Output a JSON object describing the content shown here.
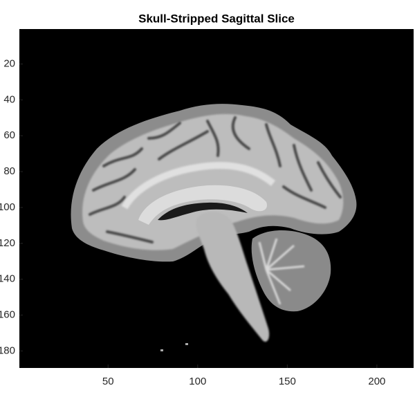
{
  "chart_data": {
    "type": "image",
    "title": "Skull-Stripped Sagittal Slice",
    "xlim": [
      0.5,
      220.5
    ],
    "xticks": [
      50,
      100,
      150,
      200
    ],
    "ylim": [
      0.5,
      189.5
    ],
    "yticks": [
      20,
      40,
      60,
      80,
      100,
      120,
      140,
      160,
      180
    ],
    "yreverse": true,
    "colormap": "gray"
  }
}
